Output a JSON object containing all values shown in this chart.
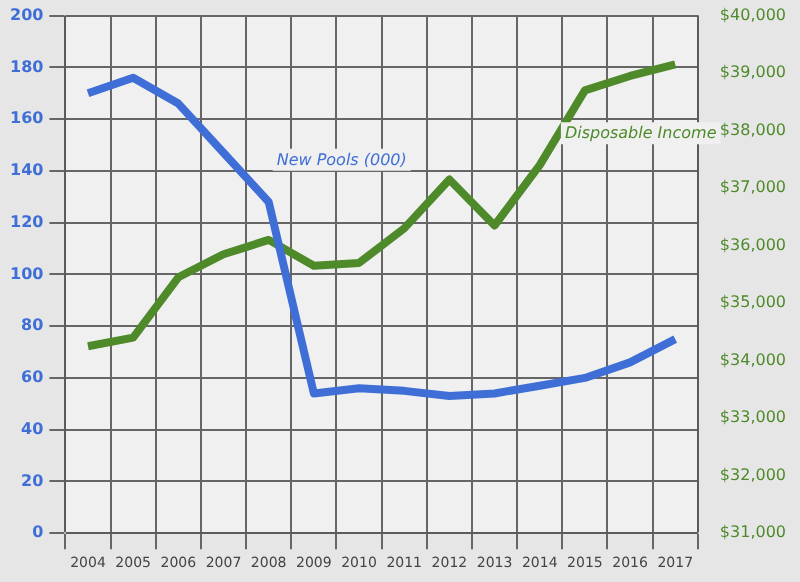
{
  "chart_data": {
    "type": "line",
    "categories": [
      "2004",
      "2005",
      "2006",
      "2007",
      "2008",
      "2009",
      "2010",
      "2011",
      "2012",
      "2013",
      "2014",
      "2015",
      "2016",
      "2017"
    ],
    "series": [
      {
        "name": "New Pools (000)",
        "color": "#3f6fd6",
        "values": [
          170,
          176,
          166,
          147,
          128,
          54,
          56,
          55,
          53,
          54,
          57,
          60,
          66,
          75
        ]
      },
      {
        "name": "Disposable Income",
        "color": "#4e8a2a",
        "axis": "y2",
        "values": [
          34250,
          34400,
          35450,
          35850,
          36100,
          35650,
          35700,
          36300,
          37150,
          36350,
          37400,
          38700,
          38950,
          39150
        ]
      }
    ],
    "ylim": [
      0,
      200
    ],
    "yticks": [
      0,
      20,
      40,
      60,
      80,
      100,
      120,
      140,
      160,
      180,
      200
    ],
    "y2lim": [
      31000,
      40000
    ],
    "y2ticks": [
      {
        "value": 31000,
        "label": "$31,000"
      },
      {
        "value": 32000,
        "label": "$32,000"
      },
      {
        "value": 33000,
        "label": "$33,000"
      },
      {
        "value": 34000,
        "label": "$34,000"
      },
      {
        "value": 35000,
        "label": "$35,000"
      },
      {
        "value": 36000,
        "label": "$36,000"
      },
      {
        "value": 37000,
        "label": "$37,000"
      },
      {
        "value": 38000,
        "label": "$38,000"
      },
      {
        "value": 39000,
        "label": "$39,000"
      },
      {
        "value": 40000,
        "label": "$40,000"
      }
    ],
    "grid": true,
    "legend": false,
    "marker": "none",
    "line_style": "solid"
  }
}
